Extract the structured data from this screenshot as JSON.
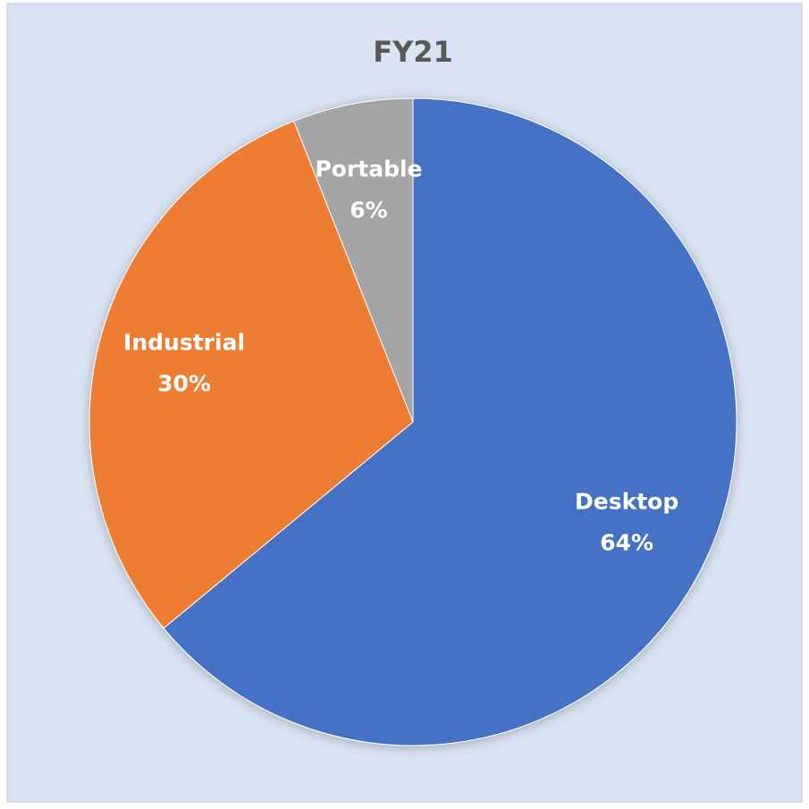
{
  "chart_data": {
    "type": "pie",
    "title": "FY21",
    "categories": [
      "Desktop",
      "Industrial",
      "Portable"
    ],
    "values": [
      64,
      30,
      6
    ],
    "value_labels": [
      "64%",
      "30%",
      "6%"
    ],
    "colors": [
      "#4472c4",
      "#ed7d31",
      "#a5a5a5"
    ]
  }
}
